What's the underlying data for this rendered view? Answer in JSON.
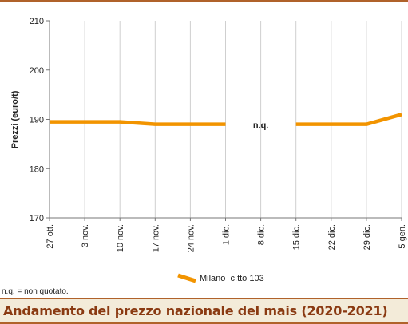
{
  "chart_data": {
    "type": "line",
    "title": "Andamento del prezzo nazionale del mais (2020-2021)",
    "ylabel": "Prezzi (euro/t)",
    "xlabel": "",
    "ylim": [
      170,
      210
    ],
    "y_ticks": [
      170,
      180,
      190,
      200,
      210
    ],
    "categories": [
      "27 ott.",
      "3 nov.",
      "10 nov.",
      "17 nov.",
      "24 nov.",
      "1 dic.",
      "8 dic.",
      "15 dic.",
      "22 dic.",
      "29 dic.",
      "5 gen."
    ],
    "series": [
      {
        "name": "Milano  c.tto 103",
        "color": "#f29400",
        "values": [
          189.5,
          189.5,
          189.5,
          189,
          189,
          189,
          null,
          189,
          189,
          189,
          191
        ]
      }
    ],
    "annotations": [
      {
        "text": "n.q.",
        "category": "8 dic."
      }
    ],
    "grid": "vertical",
    "legend": "bottom-center"
  },
  "footnote": "n.q. = non quotato."
}
